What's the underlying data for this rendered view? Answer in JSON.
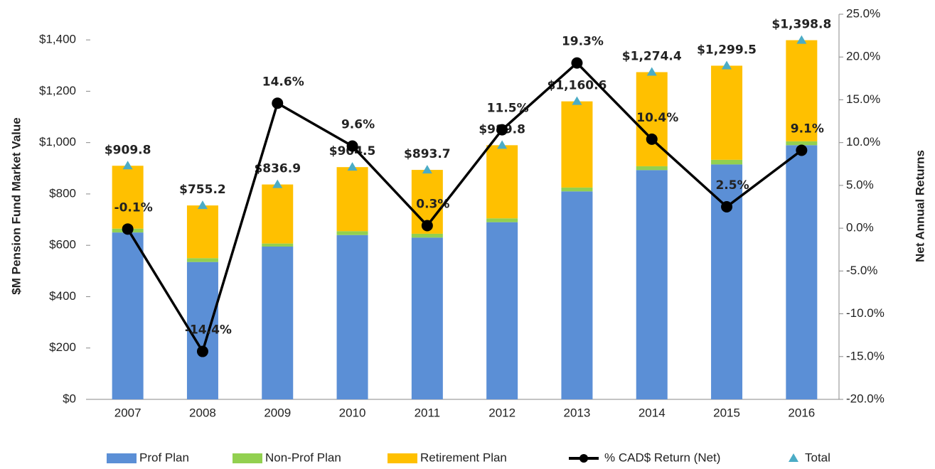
{
  "chart_data": {
    "type": "combo",
    "categories": [
      "2007",
      "2008",
      "2009",
      "2010",
      "2011",
      "2012",
      "2013",
      "2014",
      "2015",
      "2016"
    ],
    "y_label": "$M Pension Fund Market Value",
    "y2_label": "Net Annual Returns",
    "ylim": [
      0,
      1500
    ],
    "yticks": [
      {
        "value": 0,
        "label": "$0"
      },
      {
        "value": 200,
        "label": "$200"
      },
      {
        "value": 400,
        "label": "$400"
      },
      {
        "value": 600,
        "label": "$600"
      },
      {
        "value": 800,
        "label": "$800"
      },
      {
        "value": 1000,
        "label": "$1,000"
      },
      {
        "value": 1200,
        "label": "$1,200"
      },
      {
        "value": 1400,
        "label": "$1,400"
      }
    ],
    "y2lim": [
      -20,
      25
    ],
    "y2ticks": [
      {
        "value": -20,
        "label": "-20.0%"
      },
      {
        "value": -15,
        "label": "-15.0%"
      },
      {
        "value": -10,
        "label": "-10.0%"
      },
      {
        "value": -5,
        "label": "-5.0%"
      },
      {
        "value": 0,
        "label": "0.0%"
      },
      {
        "value": 5,
        "label": "5.0%"
      },
      {
        "value": 10,
        "label": "10.0%"
      },
      {
        "value": 15,
        "label": "15.0%"
      },
      {
        "value": 20,
        "label": "20.0%"
      },
      {
        "value": 25,
        "label": "25.0%"
      }
    ],
    "grid": false,
    "legend": "bottom",
    "series": [
      {
        "name": "Prof Plan",
        "type": "bar",
        "color": "#5b8fd6",
        "values": [
          650,
          535,
          595,
          640,
          630,
          690,
          810,
          893,
          915,
          990
        ]
      },
      {
        "name": "Non-Prof Plan",
        "type": "bar",
        "color": "#92d050",
        "values": [
          15,
          15,
          12,
          15,
          15,
          15,
          15,
          15,
          18,
          15
        ]
      },
      {
        "name": "Retirement Plan",
        "type": "bar",
        "color": "#ffc000",
        "values": [
          244.8,
          205.2,
          229.9,
          249.5,
          248.7,
          284.8,
          335.6,
          366.4,
          366.5,
          393.8
        ]
      },
      {
        "name": "% CAD$ Return (Net)",
        "type": "line",
        "axis": "y2",
        "color": "#000000",
        "values": [
          -0.1,
          -14.4,
          14.6,
          9.6,
          0.3,
          11.5,
          19.3,
          10.4,
          2.5,
          9.1
        ],
        "value_labels": [
          "-0.1%",
          "-14.4%",
          "14.6%",
          "9.6%",
          "0.3%",
          "11.5%",
          "19.3%",
          "10.4%",
          "2.5%",
          "9.1%"
        ]
      },
      {
        "name": "Total",
        "type": "marker",
        "color": "#4bacc6",
        "values": [
          909.8,
          755.2,
          836.9,
          904.5,
          893.7,
          989.8,
          1160.6,
          1274.4,
          1299.5,
          1398.8
        ],
        "value_labels": [
          "$909.8",
          "$755.2",
          "$836.9",
          "$904.5",
          "$893.7",
          "$989.8",
          "$1,160.6",
          "$1,274.4",
          "$1,299.5",
          "$1,398.8"
        ]
      }
    ]
  }
}
